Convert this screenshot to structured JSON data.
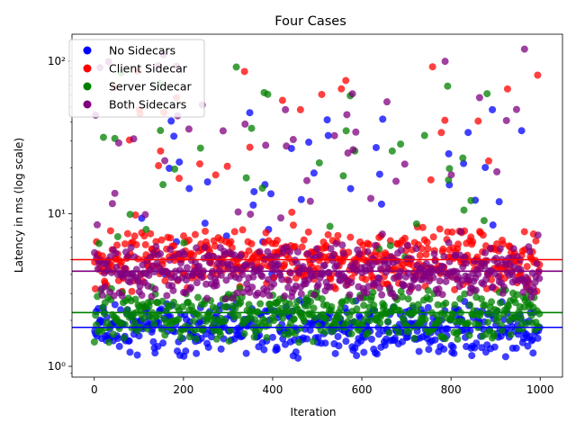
{
  "chart_data": {
    "type": "scatter",
    "title": "Four Cases",
    "xlabel": "Iteration",
    "ylabel": "Latency in ms (log scale)",
    "y_scale": "log",
    "xlim": [
      -50,
      1050
    ],
    "ylim": [
      0.85,
      150
    ],
    "x_ticks": [
      0,
      200,
      400,
      600,
      800,
      1000
    ],
    "y_ticks": [
      1,
      10,
      100
    ],
    "y_tick_labels": [
      "10⁰",
      "10¹",
      "10²"
    ],
    "grid": false,
    "legend_position": "top-left",
    "series": [
      {
        "name": "No Sidecars",
        "color": "#0000ff",
        "median": 1.8,
        "spread": [
          1.1,
          2.8
        ],
        "outlier_range": [
          3,
          50
        ]
      },
      {
        "name": "Client Sidecar",
        "color": "#ff0000",
        "median": 5.0,
        "spread": [
          3.0,
          8.5
        ],
        "outlier_range": [
          8,
          95
        ]
      },
      {
        "name": "Server Sidecar",
        "color": "#008000",
        "median": 2.25,
        "spread": [
          1.4,
          3.4
        ],
        "outlier_range": [
          4,
          92
        ]
      },
      {
        "name": "Both Sidecars",
        "color": "#800080",
        "median": 4.2,
        "spread": [
          2.6,
          6.5
        ],
        "outlier_range": [
          7,
          120
        ]
      }
    ],
    "iterations": 1000
  }
}
